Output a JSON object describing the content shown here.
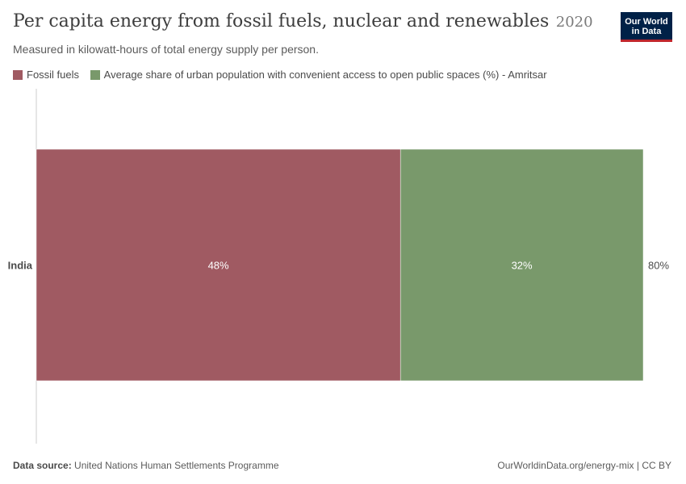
{
  "header": {
    "title": "Per capita energy from fossil fuels, nuclear and renewables",
    "year": "2020",
    "subtitle": "Measured in kilowatt-hours of total energy supply per person."
  },
  "logo": {
    "line1": "Our World",
    "line2": "in Data",
    "bg_color": "#002147",
    "accent_color": "#c0262c"
  },
  "legend": [
    {
      "label": "Fossil fuels",
      "color": "#a05a62"
    },
    {
      "label": "Average share of urban population with convenient access to open public spaces (%) - Amritsar",
      "color": "#79996b"
    }
  ],
  "chart_data": {
    "type": "bar",
    "orientation": "horizontal",
    "stacked": true,
    "categories": [
      "India"
    ],
    "series": [
      {
        "name": "Fossil fuels",
        "values": [
          48
        ],
        "labels": [
          "48%"
        ],
        "color": "#a05a62"
      },
      {
        "name": "Average share of urban population with convenient access to open public spaces (%) - Amritsar",
        "values": [
          32
        ],
        "labels": [
          "32%"
        ],
        "color": "#79996b"
      }
    ],
    "totals": [
      "80%"
    ],
    "xlim": [
      0,
      80
    ],
    "grid": false,
    "legend_position": "top-left"
  },
  "footer": {
    "source_label": "Data source:",
    "source_text": "United Nations Human Settlements Programme",
    "url_text": "OurWorldinData.org/energy-mix | CC BY"
  }
}
